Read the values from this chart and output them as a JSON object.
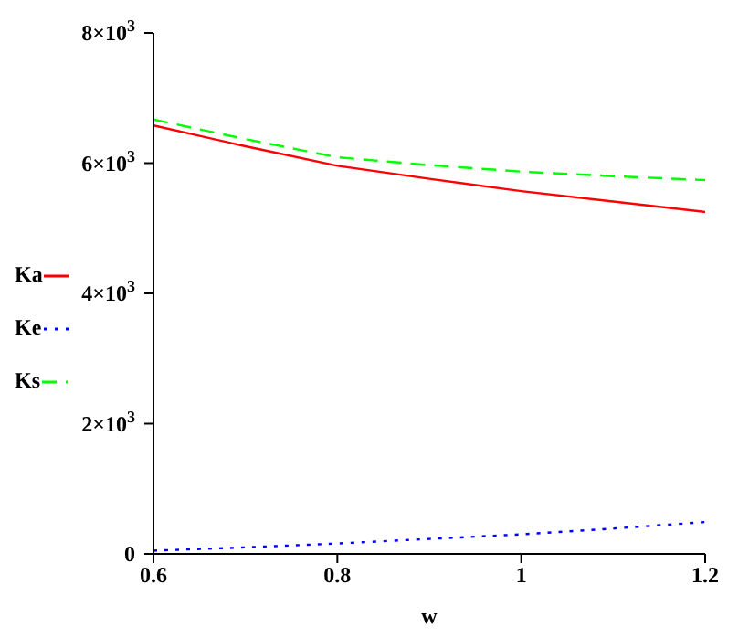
{
  "chart_data": {
    "type": "line",
    "xlabel": "w",
    "x": [
      0.6,
      0.7,
      0.8,
      0.9,
      1.0,
      1.1,
      1.2
    ],
    "series": [
      {
        "name": "Ka",
        "color": "#ff0000",
        "line_style": "solid",
        "values": [
          6580,
          6260,
          5960,
          5760,
          5570,
          5410,
          5250
        ]
      },
      {
        "name": "Ke",
        "color": "#0000ff",
        "line_style": "dotted",
        "values": [
          50,
          100,
          160,
          230,
          300,
          390,
          490
        ]
      },
      {
        "name": "Ks",
        "color": "#00ff00",
        "line_style": "dashed",
        "values": [
          6670,
          6370,
          6090,
          5970,
          5870,
          5800,
          5740
        ]
      }
    ],
    "xlim": [
      0.6,
      1.2
    ],
    "xticks": [
      0.6,
      0.8,
      1,
      1.2
    ],
    "ylim": [
      0,
      8000
    ],
    "yticks": [
      0,
      {
        "value": 2000,
        "label": "2×10$^{3}$"
      },
      {
        "value": 4000,
        "label": "4×10$^{3}$"
      },
      {
        "value": 6000,
        "label": "6×10$^{3}$"
      },
      {
        "value": 8000,
        "label": "8×10$^{3}$"
      }
    ],
    "grid": false,
    "legend": "left",
    "marker": "none"
  }
}
